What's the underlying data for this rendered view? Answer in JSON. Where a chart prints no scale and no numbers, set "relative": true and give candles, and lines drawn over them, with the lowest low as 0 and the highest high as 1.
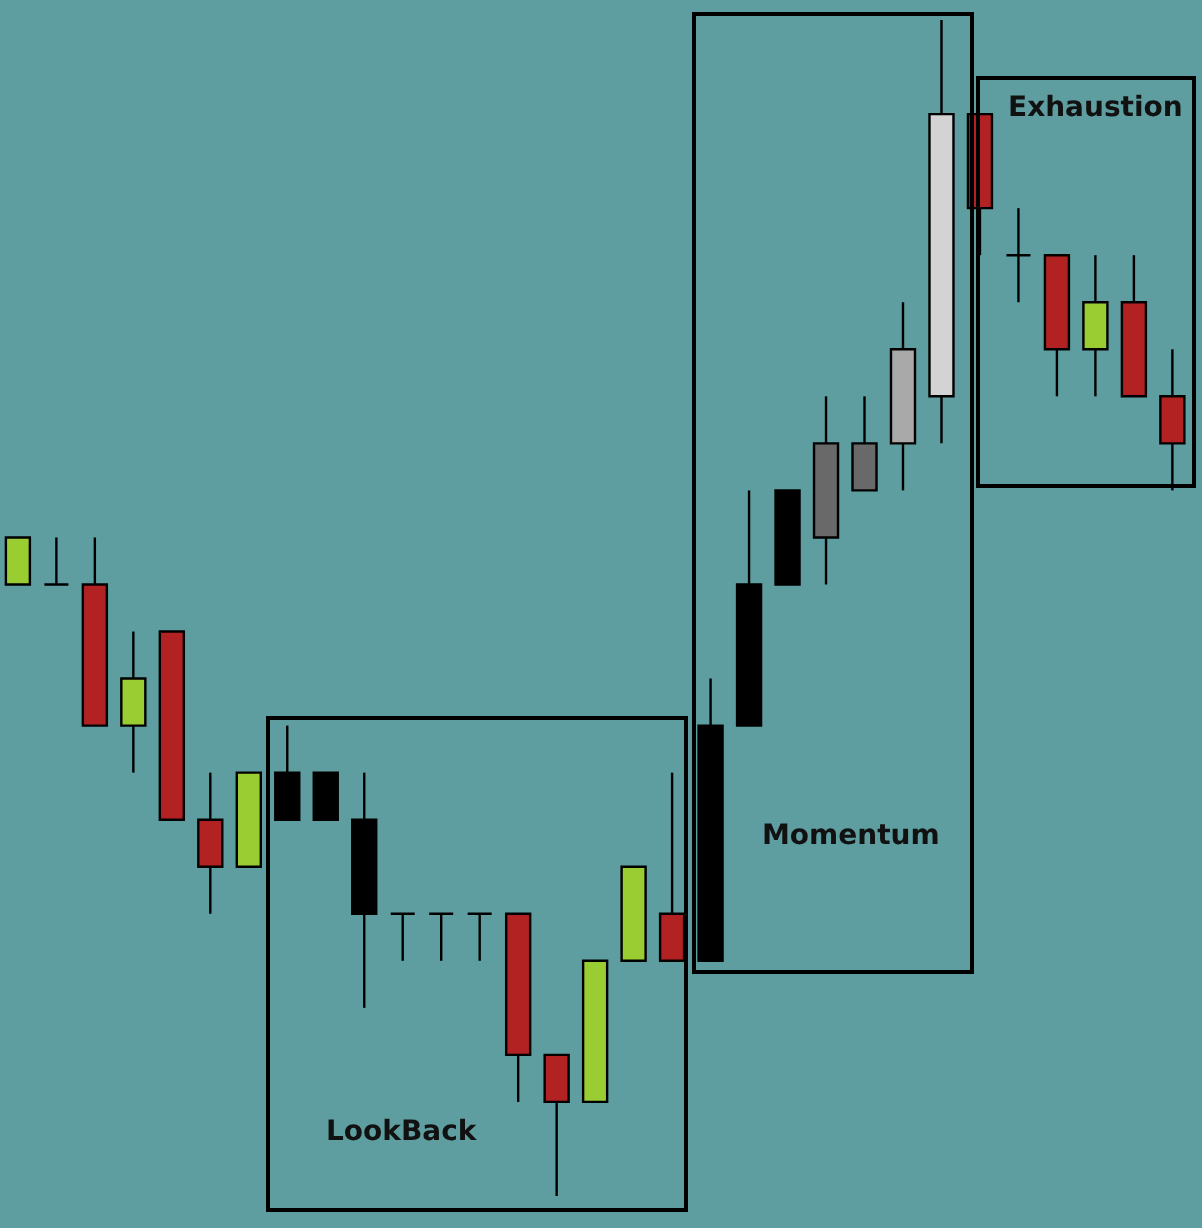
{
  "chart_data": {
    "type": "candlestick",
    "relative": true,
    "categories": [
      null,
      null,
      null,
      null,
      null,
      null,
      null,
      null,
      null,
      null,
      null,
      null,
      null,
      null,
      null,
      null,
      null,
      null,
      null,
      null,
      null,
      null,
      null,
      null,
      null,
      null,
      null,
      null,
      null,
      null,
      null
    ],
    "ohlc": [
      [
        0.52,
        0.56,
        0.52,
        0.56
      ],
      [
        0.52,
        0.56,
        0.52,
        0.52
      ],
      [
        0.52,
        0.56,
        0.4,
        0.4
      ],
      [
        0.4,
        0.48,
        0.36,
        0.44
      ],
      [
        0.48,
        0.48,
        0.32,
        0.32
      ],
      [
        0.32,
        0.36,
        0.24,
        0.28
      ],
      [
        0.28,
        0.36,
        0.28,
        0.36
      ],
      [
        0.36,
        0.4,
        0.32,
        0.32
      ],
      [
        0.36,
        0.36,
        0.32,
        0.32
      ],
      [
        0.32,
        0.36,
        0.16,
        0.24
      ],
      [
        0.24,
        0.24,
        0.2,
        0.24
      ],
      [
        0.24,
        0.24,
        0.2,
        0.24
      ],
      [
        0.24,
        0.24,
        0.2,
        0.24
      ],
      [
        0.24,
        0.24,
        0.08,
        0.12
      ],
      [
        0.12,
        0.12,
        0,
        0.08
      ],
      [
        0.08,
        0.2,
        0.08,
        0.2
      ],
      [
        0.2,
        0.28,
        0.2,
        0.28
      ],
      [
        0.24,
        0.36,
        0.2,
        0.2
      ],
      [
        0.2,
        0.44,
        0.2,
        0.4
      ],
      [
        0.4,
        0.6,
        0.4,
        0.52
      ],
      [
        0.52,
        0.6,
        0.52,
        0.6
      ],
      [
        0.56,
        0.68,
        0.52,
        0.64
      ],
      [
        0.6,
        0.68,
        0.6,
        0.64
      ],
      [
        0.64,
        0.76,
        0.6,
        0.72
      ],
      [
        0.68,
        1.0,
        0.64,
        0.92
      ],
      [
        0.92,
        0.92,
        0.8,
        0.84
      ],
      [
        0.8,
        0.84,
        0.76,
        0.8
      ],
      [
        0.8,
        0.8,
        0.68,
        0.72
      ],
      [
        0.72,
        0.8,
        0.68,
        0.76
      ],
      [
        0.76,
        0.8,
        0.68,
        0.68
      ],
      [
        0.68,
        0.72,
        0.6,
        0.64
      ]
    ],
    "colors": [
      "#9acd32",
      "#000000",
      "#b22222",
      "#9acd32",
      "#b22222",
      "#b22222",
      "#9acd32",
      "#000000",
      "#000000",
      "#000000",
      "#000000",
      "#000000",
      "#000000",
      "#b22222",
      "#b22222",
      "#9acd32",
      "#9acd32",
      "#b22222",
      "#000000",
      "#000000",
      "#000000",
      "#696969",
      "#696969",
      "#a9a9a9",
      "#d3d3d3",
      "#b22222",
      "#000000",
      "#b22222",
      "#9acd32",
      "#b22222",
      "#b22222"
    ],
    "annotations": [
      "LookBack",
      "Momentum",
      "Exhaustion"
    ]
  }
}
